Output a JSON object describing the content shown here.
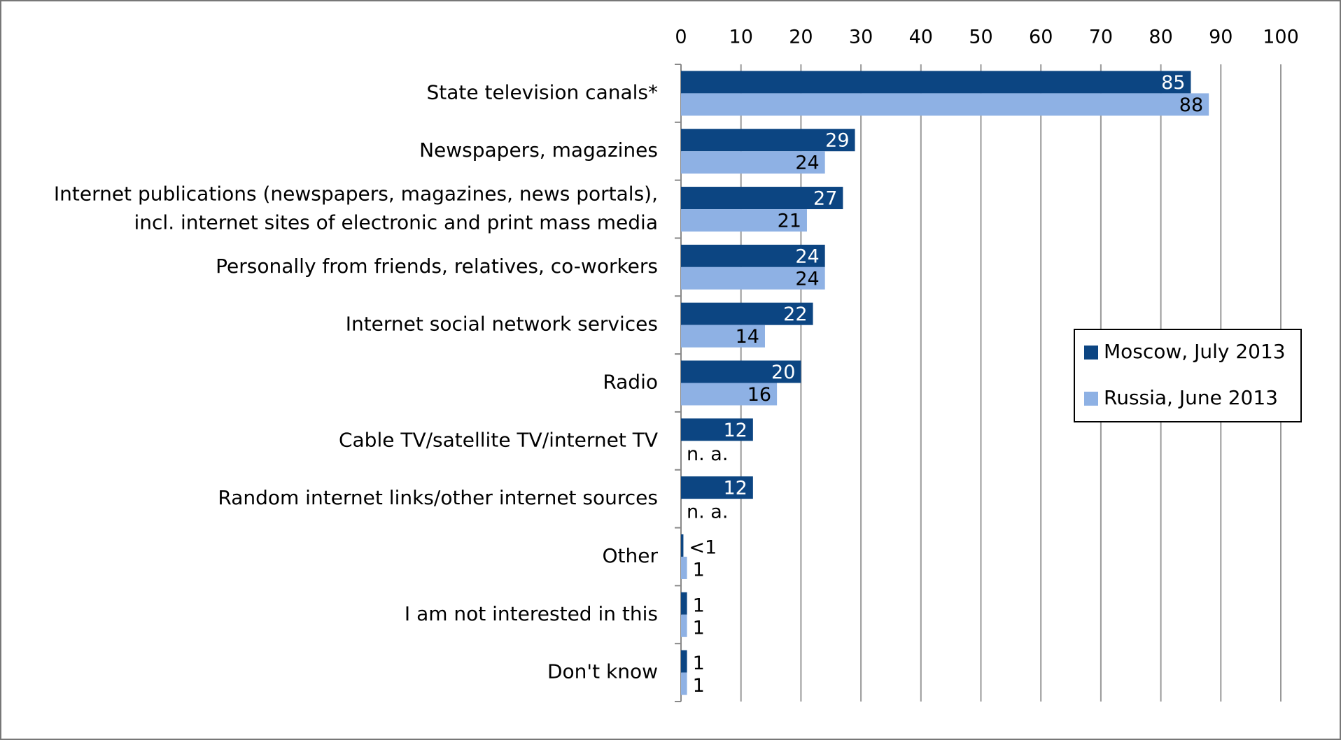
{
  "chart_data": {
    "type": "hbar",
    "categories": [
      "State television canals*",
      "Newspapers, magazines",
      [
        "Internet publications (newspapers, magazines, news portals),",
        "incl. internet sites of electronic and print mass media"
      ],
      "Personally from friends, relatives, co-workers",
      "Internet social network services",
      "Radio",
      "Cable TV/satellite TV/internet TV",
      "Random internet links/other internet sources",
      "Other",
      "I am not interested in this",
      "Don't know"
    ],
    "series": [
      {
        "name": "Moscow, July 2013",
        "color": "#0c4582",
        "label_color": "#ffffff",
        "values": [
          85,
          29,
          27,
          24,
          22,
          20,
          12,
          12,
          0.4,
          1,
          1
        ],
        "value_labels": [
          "85",
          "29",
          "27",
          "24",
          "22",
          "20",
          "12",
          "12",
          "<1",
          "1",
          "1"
        ]
      },
      {
        "name": "Russia, June 2013",
        "color": "#8eb1e4",
        "label_color": "#000000",
        "values": [
          88,
          24,
          21,
          24,
          14,
          16,
          null,
          null,
          1,
          1,
          1
        ],
        "value_labels": [
          "88",
          "24",
          "21",
          "24",
          "14",
          "16",
          "n. a.",
          "n. a.",
          "1",
          "1",
          "1"
        ]
      }
    ],
    "xlim": [
      0,
      100
    ],
    "xticks": [
      0,
      10,
      20,
      30,
      40,
      50,
      60,
      70,
      80,
      90,
      100
    ],
    "grid": true,
    "legend": "right"
  }
}
